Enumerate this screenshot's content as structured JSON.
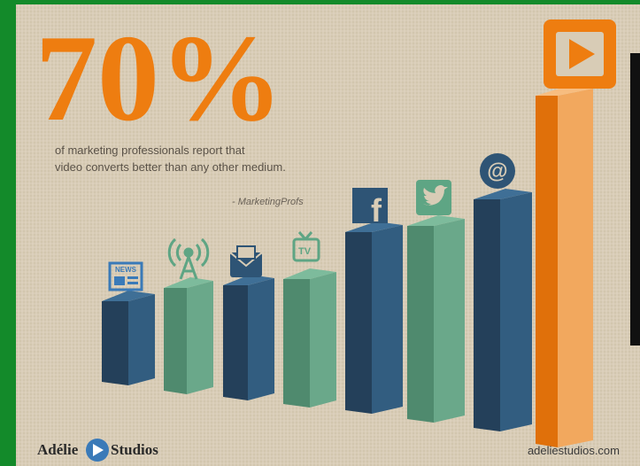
{
  "headline": "70%",
  "statement": {
    "lines": [
      "of marketing professionals report that",
      "video converts better than any other medium."
    ]
  },
  "source": "- MarketingProfs",
  "icons": {
    "news": "NEWS",
    "tv": "TV",
    "facebook": "f",
    "email": "@"
  },
  "logo": {
    "left": "Adélie",
    "right": "Studios"
  },
  "url": "adeliestudios.com"
}
